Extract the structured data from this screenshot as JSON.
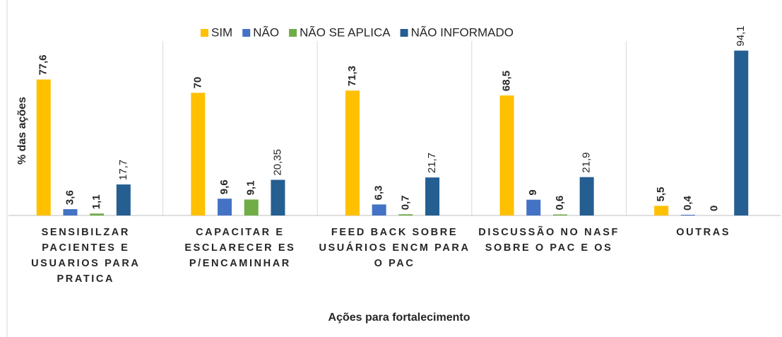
{
  "chart_data": {
    "type": "bar",
    "categories": [
      "SENSIBILZAR PACIENTES E USUARIOS PARA PRATICA",
      "CAPACITAR E ESCLARECER ES P/ENCAMINHAR",
      "FEED BACK SOBRE USUÁRIOS ENCM PARA O PAC",
      "DISCUSSÃO NO NASF SOBRE O PAC E OS",
      "OUTRAS"
    ],
    "series": [
      {
        "name": "SIM",
        "color": "#FFC000",
        "values": [
          77.6,
          70,
          71.3,
          68.5,
          5.5
        ],
        "value_labels": [
          "77,6",
          "70",
          "71,3",
          "68,5",
          "5,5"
        ]
      },
      {
        "name": "NÃO",
        "color": "#4472C4",
        "values": [
          3.6,
          9.6,
          6.3,
          9,
          0.4
        ],
        "value_labels": [
          "3,6",
          "9,6",
          "6,3",
          "9",
          "0,4"
        ]
      },
      {
        "name": "NÃO SE APLICA",
        "color": "#70AD47",
        "values": [
          1.1,
          9.1,
          0.7,
          0.6,
          0
        ],
        "value_labels": [
          "1,1",
          "9,1",
          "0,7",
          "0,6",
          "0"
        ]
      },
      {
        "name": "NÃO INFORMADO",
        "color": "#255E91",
        "values": [
          17.7,
          20.35,
          21.7,
          21.9,
          94.1
        ],
        "value_labels": [
          "17,7",
          "20,35",
          "21,7",
          "21,9",
          "94,1"
        ]
      }
    ],
    "ylabel": "% das ações",
    "xlabel": "Ações para fortalecimento",
    "ylim": [
      0,
      100
    ],
    "legend": "top"
  }
}
